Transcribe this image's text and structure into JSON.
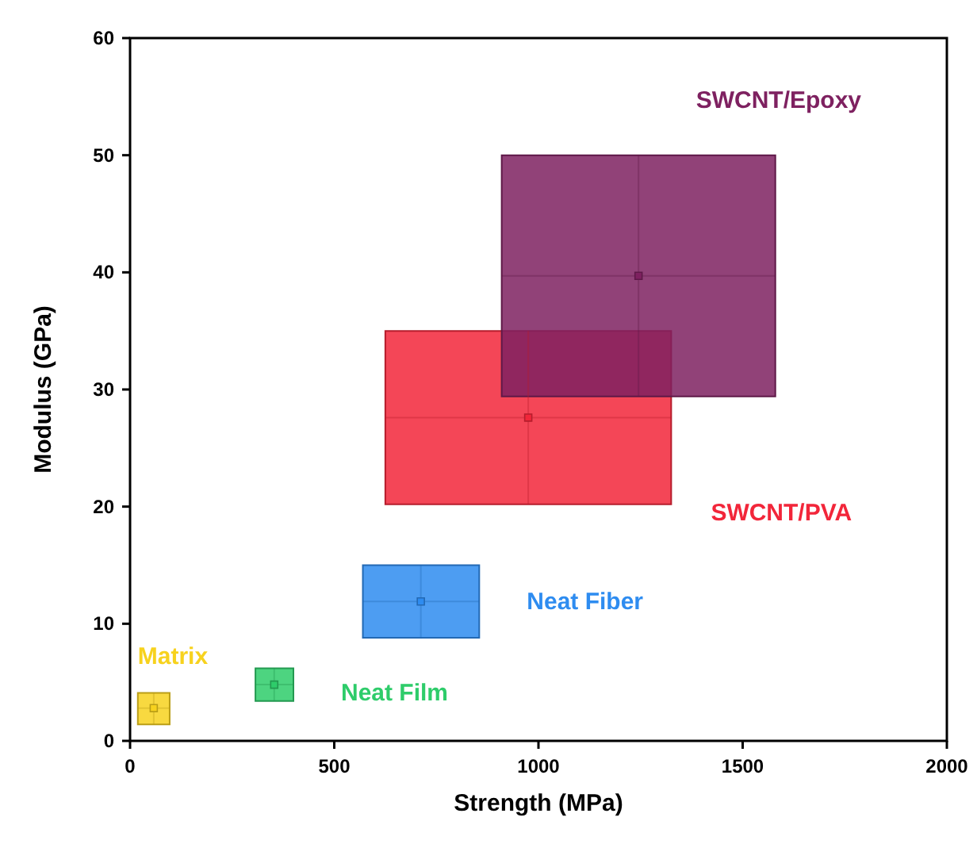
{
  "chart_data": {
    "type": "scatter",
    "xlabel": "Strength (MPa)",
    "ylabel": "Modulus (GPa)",
    "xlim": [
      0,
      2000
    ],
    "ylim": [
      0,
      60
    ],
    "xticks": [
      0,
      500,
      1000,
      1500,
      2000
    ],
    "yticks": [
      0,
      10,
      20,
      30,
      40,
      50,
      60
    ],
    "grid": false,
    "legend": false,
    "marker": "square",
    "series": [
      {
        "name": "SWCNT/PVA",
        "color": "#f2263a",
        "x": [
          975
        ],
        "values": [
          27.6
        ],
        "xerrors": [
          [
            625,
            1325
          ]
        ],
        "errors": [
          [
            20.2,
            35
          ]
        ]
      },
      {
        "name": "SWCNT/Epoxy",
        "color": "#7e2160",
        "x": [
          1245
        ],
        "values": [
          39.7
        ],
        "xerrors": [
          [
            910,
            1580
          ]
        ],
        "errors": [
          [
            29.4,
            50
          ]
        ]
      },
      {
        "name": "Neat Fiber",
        "color": "#2e8cf0",
        "x": [
          712
        ],
        "values": [
          11.9
        ],
        "xerrors": [
          [
            570,
            855
          ]
        ],
        "errors": [
          [
            8.8,
            15
          ]
        ]
      },
      {
        "name": "Neat Film",
        "color": "#2ecc6a",
        "x": [
          353
        ],
        "values": [
          4.8
        ],
        "xerrors": [
          [
            307,
            400
          ]
        ],
        "errors": [
          [
            3.4,
            6.2
          ]
        ]
      },
      {
        "name": "Matrix",
        "color": "#f7d21e",
        "x": [
          58
        ],
        "values": [
          2.8
        ],
        "xerrors": [
          [
            19,
            97
          ]
        ],
        "errors": [
          [
            1.4,
            4.1
          ]
        ]
      }
    ]
  }
}
